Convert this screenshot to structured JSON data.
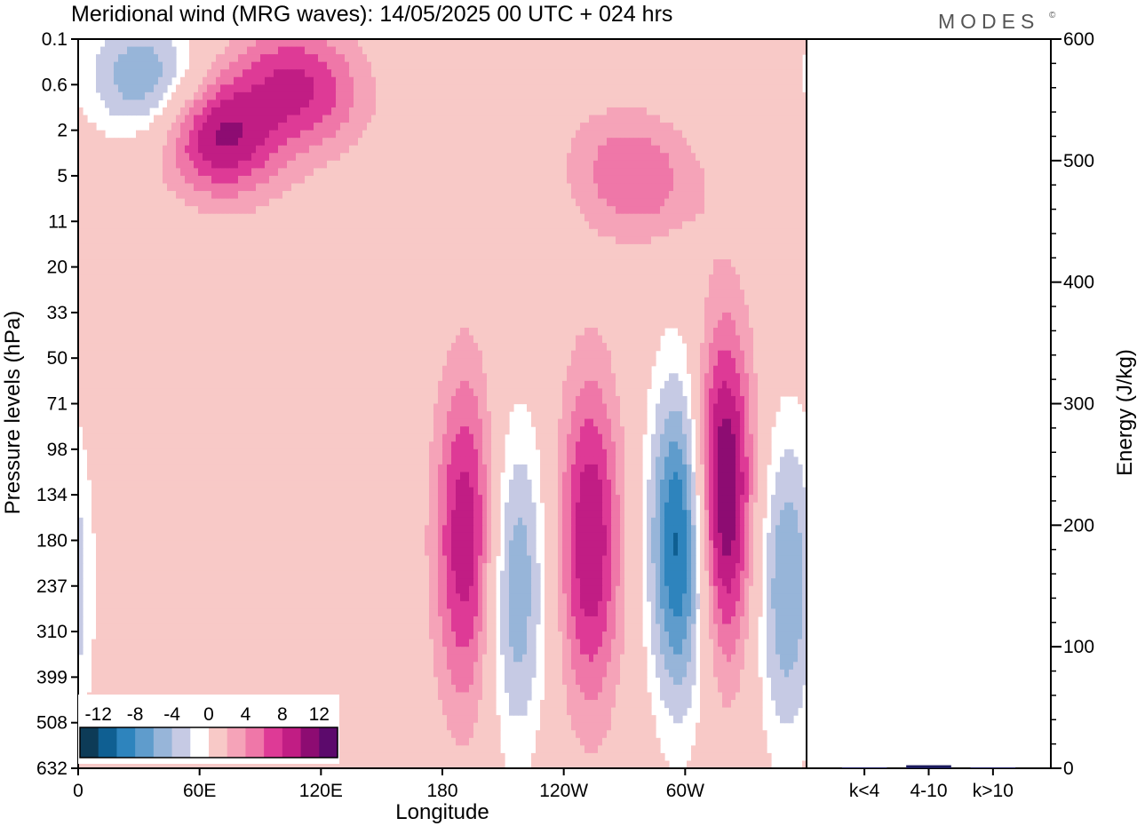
{
  "title": "Meridional wind (MRG waves):  14/05/2025  00 UTC  + 024 hrs",
  "brand": "MODES",
  "brand_mark": "©",
  "chart_data": [
    {
      "type": "heatmap",
      "variable": "Meridional wind (MRG waves)",
      "xlabel": "Longitude",
      "ylabel": "Pressure levels (hPa)",
      "x_ticks": [
        "0",
        "60E",
        "120E",
        "180",
        "120W",
        "60W"
      ],
      "x_range_deg": [
        0,
        360
      ],
      "y_ticks": [
        "0.1",
        "0.6",
        "2",
        "5",
        "11",
        "20",
        "33",
        "50",
        "71",
        "98",
        "134",
        "180",
        "237",
        "310",
        "399",
        "508",
        "632"
      ],
      "y_direction": "pressure increases downward",
      "colorbar": {
        "position": "bottom-left",
        "labels": [
          "-12",
          "-8",
          "-4",
          "0",
          "4",
          "8",
          "12"
        ],
        "levels": [
          -14,
          -12,
          -10,
          -8,
          -6,
          -4,
          -2,
          2,
          4,
          6,
          8,
          10,
          12,
          14
        ],
        "colors": [
          "#0d3b57",
          "#0f5f92",
          "#2e84bd",
          "#5f9ccc",
          "#97b5d9",
          "#c6cae4",
          "#ffffff",
          "#f8c9c7",
          "#f5a3b8",
          "#ef77a8",
          "#de3a96",
          "#c11d84",
          "#8d0c72",
          "#5c0a6c"
        ]
      },
      "features": [
        {
          "lon": 192,
          "level": "180",
          "value": 10,
          "sign": "positive"
        },
        {
          "lon": 216,
          "level": "237",
          "value": -8,
          "sign": "negative"
        },
        {
          "lon": 253,
          "level": "180",
          "value": 10,
          "sign": "positive"
        },
        {
          "lon": 298,
          "level": "180",
          "value": -14,
          "sign": "negative"
        },
        {
          "lon": 318,
          "level": "134",
          "value": 14,
          "sign": "positive"
        },
        {
          "lon": 350,
          "level": "237",
          "value": -8,
          "sign": "negative"
        },
        {
          "lon": 37,
          "level": "0.6",
          "value": -10,
          "sign": "negative"
        },
        {
          "lon": 110,
          "level": "0.6",
          "value": 8,
          "sign": "positive"
        },
        {
          "lon": 66,
          "level": "2",
          "value": 12,
          "sign": "positive"
        },
        {
          "lon": 275,
          "level": "5",
          "value": 6,
          "sign": "positive"
        }
      ]
    },
    {
      "type": "bar",
      "categories": [
        "k<4",
        "4-10",
        "k>10"
      ],
      "values": [
        0.5,
        2.5,
        0.5
      ],
      "ylabel": "Energy (J/kg)",
      "ylim": [
        0,
        600
      ],
      "y_ticks": [
        "0",
        "100",
        "200",
        "300",
        "400",
        "500",
        "600"
      ],
      "bar_color": "#1c1c5e"
    }
  ]
}
